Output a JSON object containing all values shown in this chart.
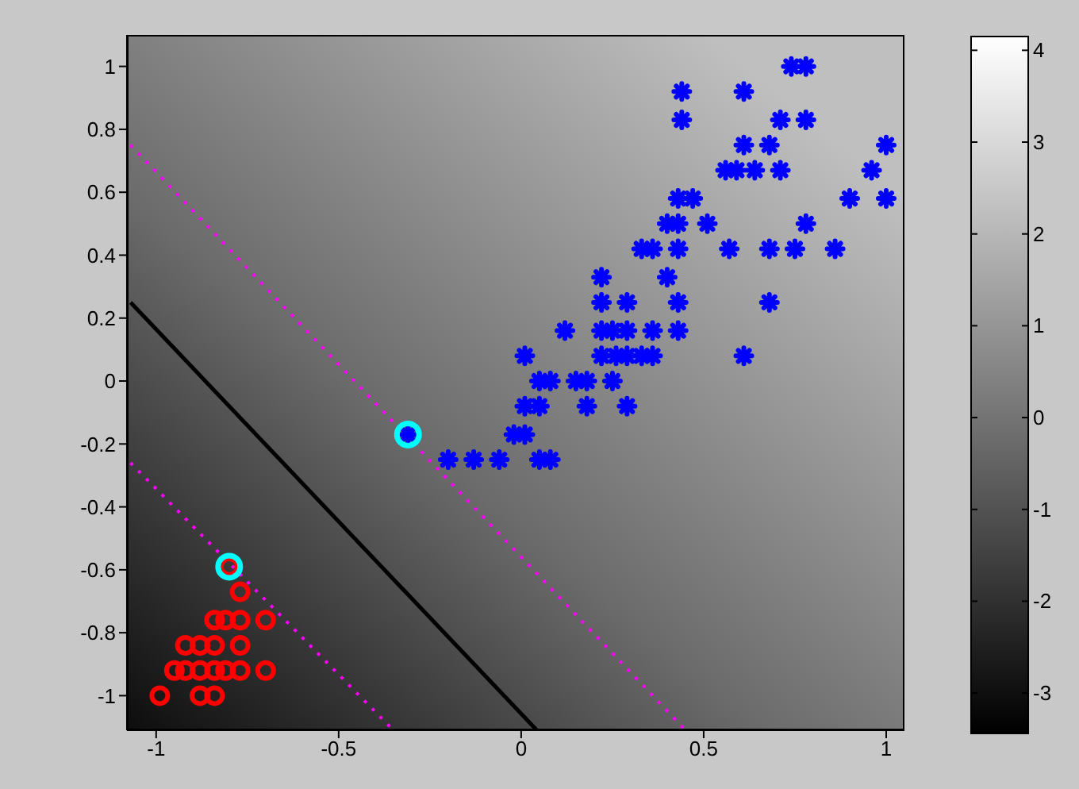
{
  "chart_data": {
    "type": "scatter",
    "xlim": [
      -1.08,
      1.05
    ],
    "ylim": [
      -1.11,
      1.1
    ],
    "xticks": [
      -1,
      -0.5,
      0,
      0.5,
      1
    ],
    "yticks": [
      -1,
      -0.8,
      -0.6,
      -0.4,
      -0.2,
      0,
      0.2,
      0.4,
      0.6,
      0.8,
      1
    ],
    "clim": [
      -3.44,
      4.15
    ],
    "cticks": [
      -3,
      -2,
      -1,
      0,
      1,
      2,
      3,
      4
    ],
    "series": [
      {
        "type": "line",
        "color": "#000000",
        "line_style": "solid",
        "x": [
          -1.07,
          0.043
        ],
        "values": [
          0.25,
          -1.11
        ]
      },
      {
        "type": "line",
        "color": "#ff00ff",
        "line_style": "dotted",
        "x": [
          -1.07,
          0.45
        ],
        "values": [
          0.75,
          -1.11
        ]
      },
      {
        "type": "line",
        "color": "#ff00ff",
        "line_style": "dotted",
        "x": [
          -1.07,
          -0.35
        ],
        "values": [
          -0.26,
          -1.11
        ]
      },
      {
        "color": "#0000ff",
        "marker": "cross",
        "x": [
          0.74,
          0.78,
          0.44,
          0.61,
          0.44,
          0.71,
          0.78,
          0.61,
          0.68,
          1.0,
          0.56,
          0.59,
          0.64,
          0.71,
          0.96,
          0.43,
          0.47,
          0.9,
          1.0,
          0.4,
          0.43,
          0.51,
          0.78,
          0.33,
          0.36,
          0.43,
          0.57,
          0.68,
          0.75,
          0.86,
          0.22,
          0.4,
          0.22,
          0.29,
          0.43,
          0.68,
          0.12,
          0.22,
          0.25,
          0.29,
          0.36,
          0.43,
          0.01,
          0.22,
          0.26,
          0.29,
          0.33,
          0.36,
          0.61,
          0.05,
          0.08,
          0.15,
          0.18,
          0.25,
          0.01,
          0.05,
          0.18,
          0.29,
          -0.02,
          0.01,
          -0.31,
          -0.2,
          -0.13,
          -0.06,
          0.05,
          0.08
        ],
        "values": [
          1.0,
          1.0,
          0.92,
          0.92,
          0.83,
          0.83,
          0.83,
          0.75,
          0.75,
          0.75,
          0.67,
          0.67,
          0.67,
          0.67,
          0.67,
          0.58,
          0.58,
          0.58,
          0.58,
          0.5,
          0.5,
          0.5,
          0.5,
          0.42,
          0.42,
          0.42,
          0.42,
          0.42,
          0.42,
          0.42,
          0.33,
          0.33,
          0.25,
          0.25,
          0.25,
          0.25,
          0.16,
          0.16,
          0.16,
          0.16,
          0.16,
          0.16,
          0.08,
          0.08,
          0.08,
          0.08,
          0.08,
          0.08,
          0.08,
          0.0,
          0.0,
          0.0,
          0.0,
          0.0,
          -0.08,
          -0.08,
          -0.08,
          -0.08,
          -0.17,
          -0.17,
          -0.17,
          -0.25,
          -0.25,
          -0.25,
          -0.25,
          -0.25
        ]
      },
      {
        "color": "#ff0000",
        "marker": "circle",
        "x": [
          -0.8,
          -0.77,
          -0.84,
          -0.81,
          -0.77,
          -0.7,
          -0.92,
          -0.88,
          -0.84,
          -0.77,
          -0.95,
          -0.92,
          -0.88,
          -0.84,
          -0.81,
          -0.77,
          -0.7,
          -0.99,
          -0.88,
          -0.84
        ],
        "values": [
          -0.59,
          -0.67,
          -0.76,
          -0.76,
          -0.76,
          -0.76,
          -0.84,
          -0.84,
          -0.84,
          -0.84,
          -0.92,
          -0.92,
          -0.92,
          -0.92,
          -0.92,
          -0.92,
          -0.92,
          -1.0,
          -1.0,
          -1.0
        ]
      },
      {
        "color": "#00ffff",
        "marker": "circle",
        "x": [
          -0.31,
          -0.8
        ],
        "values": [
          -0.17,
          -0.59
        ]
      }
    ]
  }
}
